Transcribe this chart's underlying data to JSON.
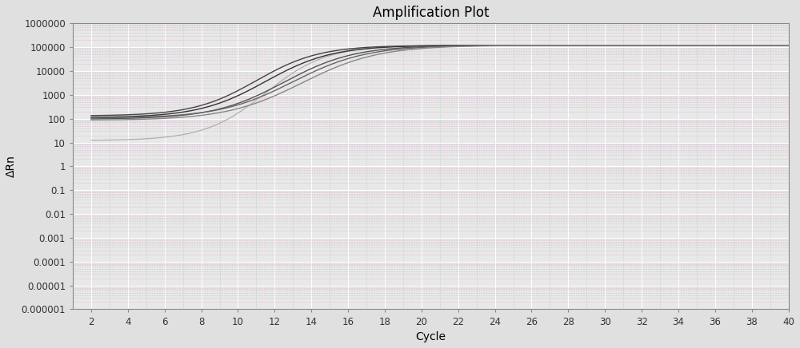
{
  "title": "Amplification Plot",
  "xlabel": "Cycle",
  "ylabel": "ΔRn",
  "xlim": [
    1,
    40
  ],
  "ylim_log": [
    1e-06,
    1000000.0
  ],
  "xticks": [
    2,
    4,
    6,
    8,
    10,
    12,
    14,
    16,
    18,
    20,
    22,
    24,
    26,
    28,
    30,
    32,
    34,
    36,
    38,
    40
  ],
  "yticks": [
    1e-06,
    1e-05,
    0.0001,
    0.001,
    0.01,
    0.1,
    1,
    10,
    100,
    1000,
    10000,
    100000,
    1000000
  ],
  "ytick_labels": [
    "0.000001",
    "0.00001",
    "0.0001",
    "0.001",
    "0.01",
    "0.1",
    "1",
    "10",
    "100",
    "1000",
    "10000",
    "100000",
    "1000000"
  ],
  "background_color": "#e0e0e0",
  "plot_bg_color": "#e8e8e8",
  "grid_color_major": "#c8c8c8",
  "grid_minor_green": "#b0d0b0",
  "grid_minor_pink": "#d8b0c8",
  "line_colors": [
    "#333333",
    "#555555",
    "#444444",
    "#666666",
    "#888888"
  ],
  "num_curves": 5,
  "curve_saturation": 120000,
  "curve_start_values": [
    110,
    95,
    130,
    105,
    85
  ],
  "curve_midpoints": [
    11.5,
    12.5,
    11.0,
    13.0,
    13.5
  ],
  "curve_slopes": [
    0.55,
    0.52,
    0.58,
    0.5,
    0.48
  ],
  "outlier_start": 12,
  "outlier_mid": 11.5,
  "outlier_slope": 0.6,
  "title_fontsize": 12,
  "label_fontsize": 10,
  "tick_fontsize": 8.5
}
